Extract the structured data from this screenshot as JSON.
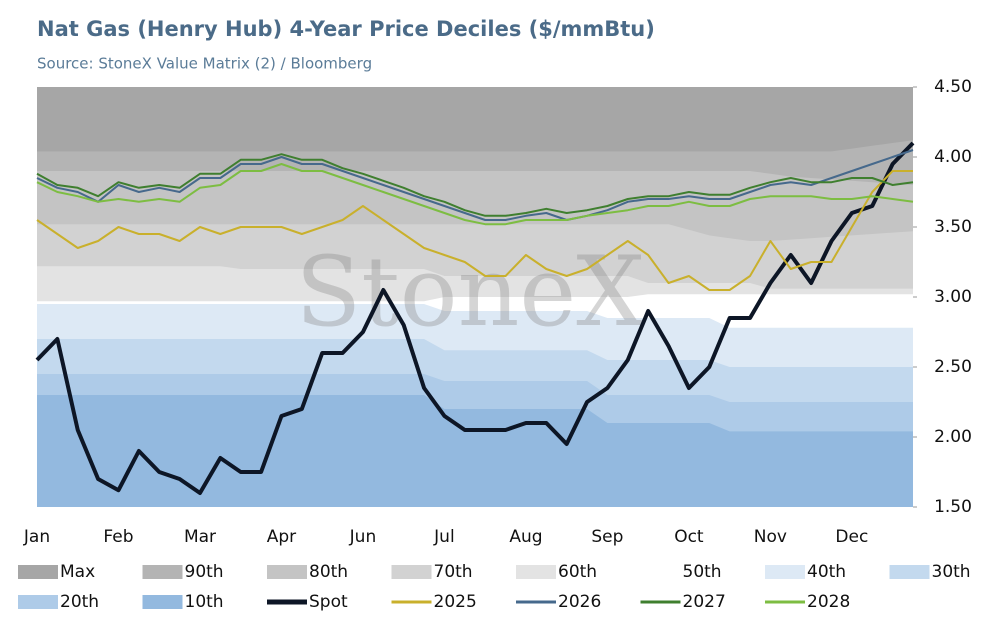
{
  "chart_data": {
    "type": "line",
    "title": "Nat Gas (Henry Hub) 4-Year Price Deciles ($/mmBtu)",
    "subtitle": "Source: StoneX Value Matrix (2) / Bloomberg",
    "watermark": "StoneX",
    "categories": [
      "Jan",
      null,
      null,
      null,
      "Feb",
      null,
      null,
      null,
      "Mar",
      null,
      null,
      null,
      "Apr",
      null,
      null,
      null,
      "Jun",
      null,
      null,
      null,
      "Jul",
      null,
      null,
      null,
      "Aug",
      null,
      null,
      null,
      "Sep",
      null,
      null,
      null,
      "Oct",
      null,
      null,
      null,
      "Nov",
      null,
      null,
      null,
      "Dec",
      null,
      null,
      null
    ],
    "ylim": [
      1.5,
      4.5
    ],
    "yticks": [
      {
        "value": 1.5,
        "label": "1.50"
      },
      {
        "value": 2,
        "label": "2.00"
      },
      {
        "value": 2.5,
        "label": "2.50"
      },
      {
        "value": 3,
        "label": "3.00"
      },
      {
        "value": 3.5,
        "label": "3.50"
      },
      {
        "value": 4,
        "label": "4.00"
      },
      {
        "value": 4.5,
        "label": "4.50"
      }
    ],
    "bands": [
      {
        "name": "Max",
        "color": "#a6a6a6",
        "values": [
          4.5,
          4.5,
          4.5,
          4.5,
          4.5,
          4.5,
          4.5,
          4.5,
          4.5,
          4.5,
          4.5,
          4.5,
          4.5,
          4.5,
          4.5,
          4.5,
          4.5,
          4.5,
          4.5,
          4.5,
          4.5,
          4.5,
          4.5,
          4.5,
          4.5,
          4.5,
          4.5,
          4.5,
          4.5,
          4.5,
          4.5,
          4.5,
          4.5,
          4.5,
          4.5,
          4.5,
          4.5,
          4.5,
          4.5,
          4.5,
          4.5,
          4.5,
          4.5,
          4.5
        ]
      },
      {
        "name": "90th",
        "color": "#b4b4b4",
        "values": [
          4.04,
          4.04,
          4.04,
          4.04,
          4.04,
          4.04,
          4.04,
          4.04,
          4.04,
          4.04,
          4.04,
          4.04,
          4.04,
          4.04,
          4.04,
          4.04,
          4.04,
          4.04,
          4.04,
          4.04,
          4.04,
          4.04,
          4.04,
          4.04,
          4.04,
          4.04,
          4.04,
          4.04,
          4.04,
          4.04,
          4.04,
          4.04,
          4.04,
          4.04,
          4.04,
          4.04,
          4.04,
          4.04,
          4.04,
          4.04,
          4.06,
          4.08,
          4.1,
          4.12
        ]
      },
      {
        "name": "80th",
        "color": "#c4c4c4",
        "values": [
          3.9,
          3.9,
          3.9,
          3.9,
          3.9,
          3.9,
          3.9,
          3.9,
          3.9,
          3.9,
          3.9,
          3.9,
          3.9,
          3.9,
          3.9,
          3.9,
          3.9,
          3.9,
          3.9,
          3.9,
          3.9,
          3.9,
          3.9,
          3.9,
          3.9,
          3.9,
          3.9,
          3.9,
          3.9,
          3.9,
          3.9,
          3.9,
          3.9,
          3.9,
          3.9,
          3.9,
          3.88,
          3.86,
          3.85,
          3.84,
          3.83,
          3.82,
          3.81,
          3.8
        ]
      },
      {
        "name": "70th",
        "color": "#d2d2d2",
        "values": [
          3.52,
          3.52,
          3.52,
          3.52,
          3.52,
          3.52,
          3.52,
          3.52,
          3.52,
          3.52,
          3.52,
          3.52,
          3.52,
          3.52,
          3.52,
          3.52,
          3.52,
          3.52,
          3.52,
          3.52,
          3.52,
          3.52,
          3.52,
          3.52,
          3.52,
          3.52,
          3.52,
          3.52,
          3.52,
          3.52,
          3.52,
          3.52,
          3.48,
          3.44,
          3.42,
          3.4,
          3.4,
          3.41,
          3.42,
          3.43,
          3.44,
          3.45,
          3.46,
          3.47
        ]
      },
      {
        "name": "60th",
        "color": "#e3e3e3",
        "values": [
          3.22,
          3.22,
          3.22,
          3.22,
          3.22,
          3.22,
          3.22,
          3.22,
          3.22,
          3.22,
          3.2,
          3.2,
          3.2,
          3.2,
          3.2,
          3.2,
          3.2,
          3.2,
          3.2,
          3.2,
          3.15,
          3.15,
          3.15,
          3.15,
          3.15,
          3.15,
          3.15,
          3.15,
          3.15,
          3.15,
          3.1,
          3.1,
          3.1,
          3.1,
          3.1,
          3.1,
          3.06,
          3.06,
          3.06,
          3.06,
          3.06,
          3.06,
          3.06,
          3.06
        ]
      },
      {
        "name": "50th",
        "color": "#ffffff",
        "values": [
          2.97,
          2.97,
          2.97,
          2.97,
          2.97,
          2.97,
          2.97,
          2.97,
          2.97,
          2.97,
          2.97,
          2.97,
          2.97,
          2.97,
          2.97,
          2.97,
          2.97,
          2.97,
          2.97,
          2.97,
          3.0,
          3.0,
          3.0,
          3.0,
          3.0,
          3.0,
          3.0,
          3.0,
          3.0,
          3.0,
          3.02,
          3.02,
          3.02,
          3.02,
          3.02,
          3.02,
          3.02,
          3.02,
          3.02,
          3.02,
          3.02,
          3.02,
          3.02,
          3.02
        ]
      },
      {
        "name": "40th",
        "color": "#dde9f5",
        "values": [
          2.95,
          2.95,
          2.95,
          2.95,
          2.95,
          2.95,
          2.95,
          2.95,
          2.95,
          2.95,
          2.95,
          2.95,
          2.95,
          2.95,
          2.95,
          2.95,
          2.95,
          2.95,
          2.95,
          2.95,
          2.9,
          2.9,
          2.9,
          2.9,
          2.9,
          2.9,
          2.9,
          2.9,
          2.85,
          2.85,
          2.85,
          2.85,
          2.85,
          2.85,
          2.78,
          2.78,
          2.78,
          2.78,
          2.78,
          2.78,
          2.78,
          2.78,
          2.78,
          2.78
        ]
      },
      {
        "name": "30th",
        "color": "#c3d9ee",
        "values": [
          2.7,
          2.7,
          2.7,
          2.7,
          2.7,
          2.7,
          2.7,
          2.7,
          2.7,
          2.7,
          2.7,
          2.7,
          2.7,
          2.7,
          2.7,
          2.7,
          2.7,
          2.7,
          2.7,
          2.7,
          2.62,
          2.62,
          2.62,
          2.62,
          2.62,
          2.62,
          2.62,
          2.62,
          2.55,
          2.55,
          2.55,
          2.55,
          2.55,
          2.55,
          2.5,
          2.5,
          2.5,
          2.5,
          2.5,
          2.5,
          2.5,
          2.5,
          2.5,
          2.5
        ]
      },
      {
        "name": "20th",
        "color": "#aecbe8",
        "values": [
          2.45,
          2.45,
          2.45,
          2.45,
          2.45,
          2.45,
          2.45,
          2.45,
          2.45,
          2.45,
          2.45,
          2.45,
          2.45,
          2.45,
          2.45,
          2.45,
          2.45,
          2.45,
          2.45,
          2.45,
          2.4,
          2.4,
          2.4,
          2.4,
          2.4,
          2.4,
          2.4,
          2.4,
          2.3,
          2.3,
          2.3,
          2.3,
          2.3,
          2.3,
          2.25,
          2.25,
          2.25,
          2.25,
          2.25,
          2.25,
          2.25,
          2.25,
          2.25,
          2.25
        ]
      },
      {
        "name": "10th",
        "color": "#93b9df",
        "values": [
          2.3,
          2.3,
          2.3,
          2.3,
          2.3,
          2.3,
          2.3,
          2.3,
          2.3,
          2.3,
          2.3,
          2.3,
          2.3,
          2.3,
          2.3,
          2.3,
          2.3,
          2.3,
          2.3,
          2.3,
          2.2,
          2.2,
          2.2,
          2.2,
          2.2,
          2.2,
          2.2,
          2.2,
          2.1,
          2.1,
          2.1,
          2.1,
          2.1,
          2.1,
          2.04,
          2.04,
          2.04,
          2.04,
          2.04,
          2.04,
          2.04,
          2.04,
          2.04,
          2.04
        ]
      }
    ],
    "series": [
      {
        "name": "Spot",
        "color": "#0d1626",
        "width": 4,
        "values": [
          2.55,
          2.7,
          2.05,
          1.7,
          1.62,
          1.9,
          1.75,
          1.7,
          1.6,
          1.85,
          1.75,
          1.75,
          2.15,
          2.2,
          2.6,
          2.6,
          2.75,
          3.05,
          2.8,
          2.35,
          2.15,
          2.05,
          2.05,
          2.05,
          2.1,
          2.1,
          1.95,
          2.25,
          2.35,
          2.55,
          2.9,
          2.65,
          2.35,
          2.5,
          2.85,
          2.85,
          3.1,
          3.3,
          3.1,
          3.4,
          3.6,
          3.65,
          3.95,
          4.1
        ]
      },
      {
        "name": "2025",
        "color": "#c9b02c",
        "width": 2,
        "values": [
          3.55,
          3.45,
          3.35,
          3.4,
          3.5,
          3.45,
          3.45,
          3.4,
          3.5,
          3.45,
          3.5,
          3.5,
          3.5,
          3.45,
          3.5,
          3.55,
          3.65,
          3.55,
          3.45,
          3.35,
          3.3,
          3.25,
          3.15,
          3.15,
          3.3,
          3.2,
          3.15,
          3.2,
          3.3,
          3.4,
          3.3,
          3.1,
          3.15,
          3.05,
          3.05,
          3.15,
          3.4,
          3.2,
          3.25,
          3.25,
          3.5,
          3.75,
          3.9,
          3.9
        ]
      },
      {
        "name": "2026",
        "color": "#46698c",
        "width": 2,
        "values": [
          3.85,
          3.78,
          3.75,
          3.68,
          3.8,
          3.75,
          3.78,
          3.75,
          3.85,
          3.85,
          3.95,
          3.95,
          4.0,
          3.95,
          3.95,
          3.9,
          3.85,
          3.8,
          3.75,
          3.7,
          3.65,
          3.6,
          3.55,
          3.55,
          3.58,
          3.6,
          3.55,
          3.58,
          3.62,
          3.68,
          3.7,
          3.7,
          3.72,
          3.7,
          3.7,
          3.75,
          3.8,
          3.82,
          3.8,
          3.85,
          3.9,
          3.95,
          4.0,
          4.05
        ]
      },
      {
        "name": "2027",
        "color": "#3f7f2f",
        "width": 2,
        "values": [
          3.88,
          3.8,
          3.78,
          3.72,
          3.82,
          3.78,
          3.8,
          3.78,
          3.88,
          3.88,
          3.98,
          3.98,
          4.02,
          3.98,
          3.98,
          3.92,
          3.88,
          3.83,
          3.78,
          3.72,
          3.68,
          3.62,
          3.58,
          3.58,
          3.6,
          3.63,
          3.6,
          3.62,
          3.65,
          3.7,
          3.72,
          3.72,
          3.75,
          3.73,
          3.73,
          3.78,
          3.82,
          3.85,
          3.82,
          3.82,
          3.85,
          3.85,
          3.8,
          3.82
        ]
      },
      {
        "name": "2028",
        "color": "#7dbd42",
        "width": 2,
        "values": [
          3.82,
          3.75,
          3.72,
          3.68,
          3.7,
          3.68,
          3.7,
          3.68,
          3.78,
          3.8,
          3.9,
          3.9,
          3.95,
          3.9,
          3.9,
          3.85,
          3.8,
          3.75,
          3.7,
          3.65,
          3.6,
          3.55,
          3.52,
          3.52,
          3.55,
          3.55,
          3.55,
          3.58,
          3.6,
          3.62,
          3.65,
          3.65,
          3.68,
          3.65,
          3.65,
          3.7,
          3.72,
          3.72,
          3.72,
          3.7,
          3.7,
          3.72,
          3.7,
          3.68
        ]
      }
    ]
  }
}
